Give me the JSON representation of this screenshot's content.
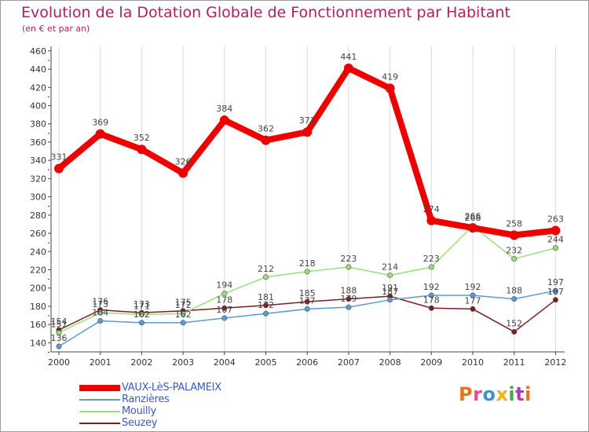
{
  "title": "Evolution de la Dotation Globale de Fonctionnement par Habitant",
  "subtitle": "(en € et par an)",
  "brand": {
    "text": "Proxiti",
    "colors": [
      "#e8731e",
      "#e84c8c",
      "#3f8fd2",
      "#f2b21b",
      "#41a94a",
      "#b53cb0",
      "#e8731e"
    ]
  },
  "chart_data": {
    "type": "line",
    "x": [
      "2000",
      "2001",
      "2002",
      "2003",
      "2004",
      "2005",
      "2006",
      "2007",
      "2008",
      "2009",
      "2010",
      "2011",
      "2012"
    ],
    "ylim": [
      130,
      465
    ],
    "yticks": [
      140,
      160,
      180,
      200,
      220,
      240,
      260,
      280,
      300,
      320,
      340,
      360,
      380,
      400,
      420,
      440,
      460
    ],
    "grid": "vertical",
    "legend_position": "bottom-left",
    "series": [
      {
        "name": "VAUX-LèS-PALAMEIX",
        "color": "#ee0000",
        "width": 8,
        "values": [
          331,
          369,
          352,
          326,
          384,
          362,
          371,
          441,
          419,
          274,
          266,
          258,
          263
        ],
        "labels": [
          "331",
          "369",
          "352",
          "326",
          "384",
          "362",
          "371",
          "441",
          "419",
          "274",
          "266",
          "258",
          "263"
        ]
      },
      {
        "name": "Ranzières",
        "color": "#5b9bd5",
        "width": 1.5,
        "values": [
          136,
          164,
          162,
          162,
          167,
          172,
          177,
          179,
          187,
          192,
          192,
          188,
          197
        ],
        "labels": [
          "136",
          "164",
          "162",
          "162",
          "167",
          "172",
          "177",
          "179",
          "187",
          "192",
          "192",
          "188",
          "197"
        ]
      },
      {
        "name": "Mouilly",
        "color": "#99e07a",
        "width": 1.5,
        "values": [
          151,
          173,
          171,
          172,
          194,
          212,
          218,
          223,
          214,
          223,
          268,
          232,
          244
        ],
        "labels": [
          "151",
          "173",
          "171",
          "172",
          "194",
          "212",
          "218",
          "223",
          "214",
          "223",
          "268",
          "232",
          "244"
        ]
      },
      {
        "name": "Seuzey",
        "color": "#7a1e22",
        "width": 1.5,
        "values": [
          154,
          176,
          173,
          175,
          178,
          181,
          185,
          188,
          191,
          178,
          177,
          152,
          187
        ],
        "labels": [
          "154",
          "176",
          "173",
          "175",
          "178",
          "181",
          "185",
          "188",
          "191",
          "178",
          "177",
          "152",
          "187"
        ]
      }
    ]
  }
}
